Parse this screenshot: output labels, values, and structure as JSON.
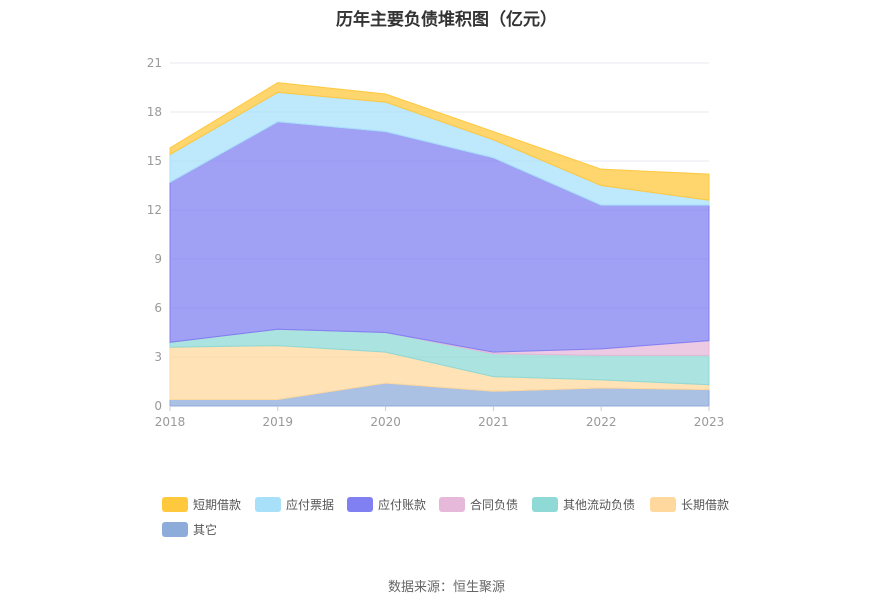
{
  "chart_data": {
    "type": "area",
    "stacked": true,
    "title": "历年主要负债堆积图（亿元）",
    "x": [
      "2018",
      "2019",
      "2020",
      "2021",
      "2022",
      "2023"
    ],
    "ylim": [
      0,
      21
    ],
    "yticks": [
      "0",
      "3",
      "6",
      "9",
      "12",
      "15",
      "18",
      "21"
    ],
    "grid": true,
    "legend_position": "bottom",
    "series": [
      {
        "name": "其它",
        "color": "#8eacd9",
        "values": [
          0.4,
          0.4,
          1.4,
          0.9,
          1.1,
          1.0
        ]
      },
      {
        "name": "长期借款",
        "color": "#ffd89e",
        "values": [
          3.2,
          3.3,
          1.9,
          0.9,
          0.5,
          0.3
        ]
      },
      {
        "name": "其他流动负债",
        "color": "#8fd9d6",
        "values": [
          0.3,
          1.0,
          1.2,
          1.4,
          1.5,
          1.8
        ]
      },
      {
        "name": "合同负债",
        "color": "#e6b8d9",
        "values": [
          0.0,
          0.0,
          0.0,
          0.1,
          0.4,
          0.9
        ]
      },
      {
        "name": "应付账款",
        "color": "#8080f2",
        "values": [
          9.8,
          12.7,
          12.3,
          11.9,
          8.8,
          8.3
        ]
      },
      {
        "name": "应付票据",
        "color": "#a8e0fa",
        "values": [
          1.7,
          1.8,
          1.8,
          1.1,
          1.2,
          0.3
        ]
      },
      {
        "name": "短期借款",
        "color": "#ffc83d",
        "values": [
          0.4,
          0.6,
          0.5,
          0.5,
          1.0,
          1.6
        ]
      }
    ],
    "legend_order": [
      "短期借款",
      "应付票据",
      "应付账款",
      "合同负债",
      "其他流动负债",
      "长期借款",
      "其它"
    ]
  },
  "source_text": "数据来源：恒生聚源"
}
